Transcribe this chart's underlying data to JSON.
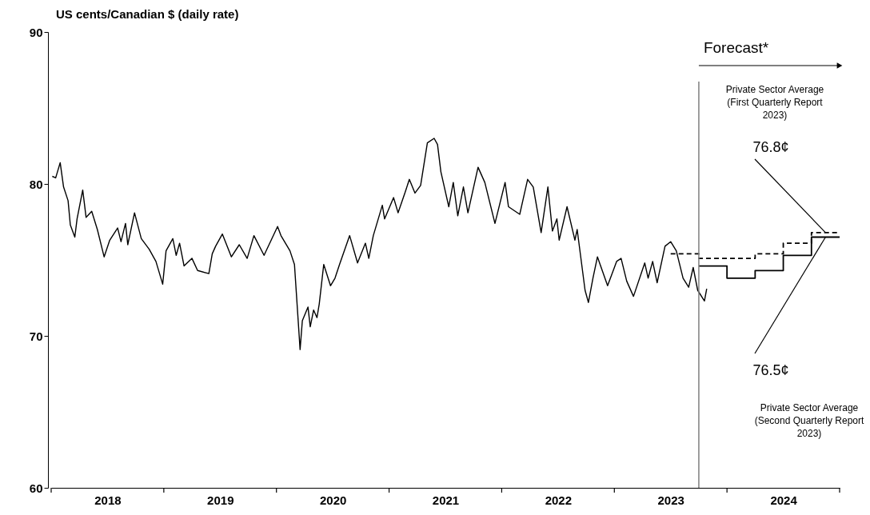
{
  "chart_data": {
    "type": "line",
    "ylabel": "US cents/Canadian $ (daily rate)",
    "xlim": [
      2018,
      2025
    ],
    "ylim": [
      60,
      90
    ],
    "yticks": [
      60,
      70,
      80,
      90
    ],
    "xticks": [
      {
        "value": 2018,
        "label": null
      },
      {
        "value": 2019,
        "label": null
      },
      {
        "value": 2020,
        "label": null
      },
      {
        "value": 2021,
        "label": null
      },
      {
        "value": 2022,
        "label": null
      },
      {
        "value": 2023,
        "label": null
      },
      {
        "value": 2024,
        "label": null
      },
      {
        "value": 2025,
        "label": null
      },
      {
        "value": 2018.5,
        "label": "2018"
      },
      {
        "value": 2019.5,
        "label": "2019"
      },
      {
        "value": 2020.5,
        "label": "2020"
      },
      {
        "value": 2021.5,
        "label": "2021"
      },
      {
        "value": 2022.5,
        "label": "2022"
      },
      {
        "value": 2023.5,
        "label": "2023"
      },
      {
        "value": 2024.5,
        "label": "2024"
      }
    ],
    "grid": false,
    "series": [
      {
        "color": "#000000",
        "line_style": "solid",
        "x": [
          2018.01,
          2018.04,
          2018.08,
          2018.11,
          2018.15,
          2018.17,
          2018.21,
          2018.23,
          2018.28,
          2018.31,
          2018.36,
          2018.41,
          2018.47,
          2018.52,
          2018.59,
          2018.62,
          2018.66,
          2018.68,
          2018.74,
          2018.8,
          2018.87,
          2018.93,
          2018.99,
          2019.02,
          2019.08,
          2019.11,
          2019.14,
          2019.18,
          2019.25,
          2019.3,
          2019.4,
          2019.43,
          2019.46,
          2019.52,
          2019.6,
          2019.67,
          2019.74,
          2019.8,
          2019.89,
          2020.01,
          2020.04,
          2020.12,
          2020.16,
          2020.21,
          2020.23,
          2020.28,
          2020.3,
          2020.33,
          2020.36,
          2020.38,
          2020.42,
          2020.48,
          2020.52,
          2020.56,
          2020.65,
          2020.72,
          2020.79,
          2020.82,
          2020.86,
          2020.94,
          2020.96,
          2021.04,
          2021.08,
          2021.14,
          2021.18,
          2021.23,
          2021.28,
          2021.34,
          2021.4,
          2021.43,
          2021.46,
          2021.53,
          2021.57,
          2021.61,
          2021.66,
          2021.7,
          2021.79,
          2021.85,
          2021.94,
          2022.03,
          2022.06,
          2022.16,
          2022.23,
          2022.28,
          2022.35,
          2022.41,
          2022.45,
          2022.49,
          2022.51,
          2022.58,
          2022.65,
          2022.67,
          2022.74,
          2022.77,
          2022.81,
          2022.85,
          2022.94,
          2023.02,
          2023.06,
          2023.11,
          2023.17,
          2023.27,
          2023.3,
          2023.34,
          2023.38,
          2023.45,
          2023.5,
          2023.55,
          2023.61,
          2023.66,
          2023.7,
          2023.74,
          2023.8,
          2023.82
        ],
        "values": [
          80.5,
          80.4,
          81.4,
          79.8,
          78.9,
          77.3,
          76.5,
          77.7,
          79.6,
          77.8,
          78.2,
          77.0,
          75.2,
          76.3,
          77.1,
          76.2,
          77.4,
          76.0,
          78.1,
          76.4,
          75.7,
          74.9,
          73.4,
          75.6,
          76.4,
          75.3,
          76.1,
          74.6,
          75.1,
          74.3,
          74.1,
          75.4,
          75.9,
          76.7,
          75.2,
          76.0,
          75.1,
          76.6,
          75.3,
          77.2,
          76.6,
          75.6,
          74.7,
          69.1,
          71.0,
          71.9,
          70.6,
          71.7,
          71.2,
          72.1,
          74.7,
          73.3,
          73.8,
          74.7,
          76.6,
          74.8,
          76.1,
          75.1,
          76.6,
          78.6,
          77.7,
          79.1,
          78.1,
          79.4,
          80.3,
          79.4,
          79.9,
          82.7,
          83.0,
          82.6,
          80.8,
          78.5,
          80.1,
          77.9,
          79.8,
          78.1,
          81.1,
          80.1,
          77.4,
          80.1,
          78.5,
          78.0,
          80.3,
          79.8,
          76.8,
          79.8,
          76.9,
          77.7,
          76.3,
          78.5,
          76.3,
          77.0,
          73.0,
          72.2,
          73.8,
          75.2,
          73.3,
          74.9,
          75.1,
          73.6,
          72.6,
          74.8,
          73.8,
          74.9,
          73.5,
          75.9,
          76.2,
          75.6,
          73.8,
          73.2,
          74.5,
          73.0,
          72.3,
          73.1
        ]
      },
      {
        "type": "step",
        "color": "#000000",
        "line_style": "dashed",
        "x": [
          2023.5,
          2023.75,
          2024,
          2024.25,
          2024.5,
          2024.75,
          2025
        ],
        "values": [
          75.4,
          75.1,
          75.1,
          75.4,
          76.1,
          76.8,
          76.8
        ]
      },
      {
        "type": "step",
        "color": "#000000",
        "line_style": "solid",
        "x": [
          2023.75,
          2024,
          2024.25,
          2024.5,
          2024.75,
          2025
        ],
        "values": [
          74.6,
          73.8,
          74.3,
          75.3,
          76.5,
          76.5
        ]
      }
    ],
    "ref_lines": [
      {
        "axis": "x",
        "value": 2023.75,
        "label": "Forecast*",
        "color": "#7f7f7f"
      }
    ],
    "annotations": [
      "Private Sector Average\n(First Quarterly Report\n2023)",
      {
        "text": "76.8¢",
        "x": 2024.875,
        "y": 76.8
      },
      {
        "text": "76.5¢",
        "x": 2024.875,
        "y": 76.5
      },
      "Private Sector Average\n(Second Quarterly Report\n2023)"
    ]
  }
}
